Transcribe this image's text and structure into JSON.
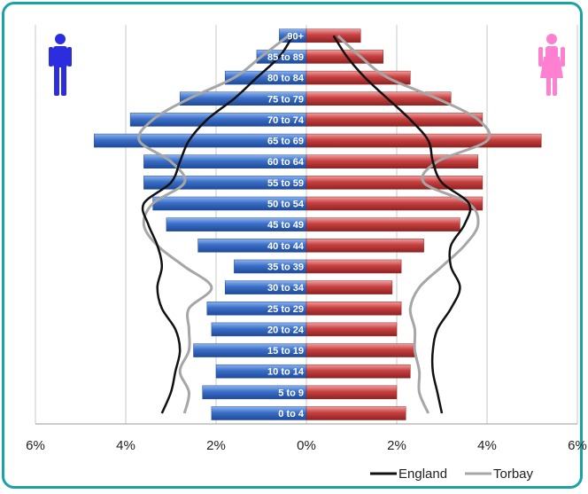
{
  "chart_data": {
    "type": "bar",
    "orientation": "horizontal",
    "categories": [
      "0 to 4",
      "5 to 9",
      "10 to 14",
      "15 to 19",
      "20 to 24",
      "25 to 29",
      "30 to 34",
      "35 to 39",
      "40 to 44",
      "45 to 49",
      "50 to 54",
      "55 to 59",
      "60 to 64",
      "65 to 69",
      "70 to 74",
      "75 to 79",
      "80 to 84",
      "85 to 89",
      "90+"
    ],
    "series": [
      {
        "values": [
          -2.1,
          -2.3,
          -2.0,
          -2.5,
          -2.1,
          -2.2,
          -1.8,
          -1.6,
          -2.4,
          -3.1,
          -3.4,
          -3.6,
          -3.6,
          -4.7,
          -3.9,
          -2.8,
          -1.8,
          -1.1,
          -0.6
        ],
        "color": "#3b6fc8"
      },
      {
        "values": [
          2.2,
          2.0,
          2.3,
          2.4,
          2.0,
          2.1,
          1.9,
          2.1,
          2.6,
          3.4,
          3.9,
          3.9,
          3.8,
          5.2,
          3.9,
          3.2,
          2.3,
          1.7,
          1.2
        ],
        "color": "#c84040"
      },
      {
        "name": "England",
        "male": [
          3.2,
          3.0,
          2.9,
          2.8,
          2.9,
          3.2,
          3.3,
          3.2,
          3.3,
          3.5,
          3.6,
          3.0,
          2.8,
          2.6,
          2.2,
          1.6,
          1.1,
          0.6,
          0.3
        ],
        "female": [
          3.0,
          2.9,
          2.8,
          2.8,
          2.9,
          3.2,
          3.4,
          3.2,
          3.2,
          3.5,
          3.6,
          3.0,
          2.8,
          2.7,
          2.3,
          1.8,
          1.3,
          0.9,
          0.6
        ],
        "color": "#111111"
      },
      {
        "name": "Torbay",
        "male": [
          2.7,
          2.6,
          2.8,
          2.6,
          2.6,
          2.6,
          2.1,
          2.7,
          3.3,
          3.6,
          3.4,
          2.7,
          3.0,
          3.7,
          3.4,
          2.6,
          1.6,
          1.0,
          0.4
        ],
        "female": [
          2.7,
          2.5,
          2.5,
          2.4,
          2.4,
          2.3,
          2.5,
          3.0,
          3.5,
          3.8,
          3.6,
          2.6,
          2.9,
          4.0,
          3.8,
          2.9,
          1.8,
          1.2,
          0.7
        ],
        "color": "#a6a6a6"
      }
    ],
    "x_ticks": [
      "6%",
      "4%",
      "2%",
      "0%",
      "2%",
      "4%",
      "6%"
    ],
    "xlim": [
      -6,
      6
    ],
    "grid": true,
    "legend": "bottom-right"
  },
  "icons": {
    "male": "male-figure-icon",
    "female": "female-figure-icon"
  },
  "colors": {
    "frame": "#1aa3a3",
    "male_icon": "#2d2de0",
    "female_icon": "#ff80d0"
  }
}
